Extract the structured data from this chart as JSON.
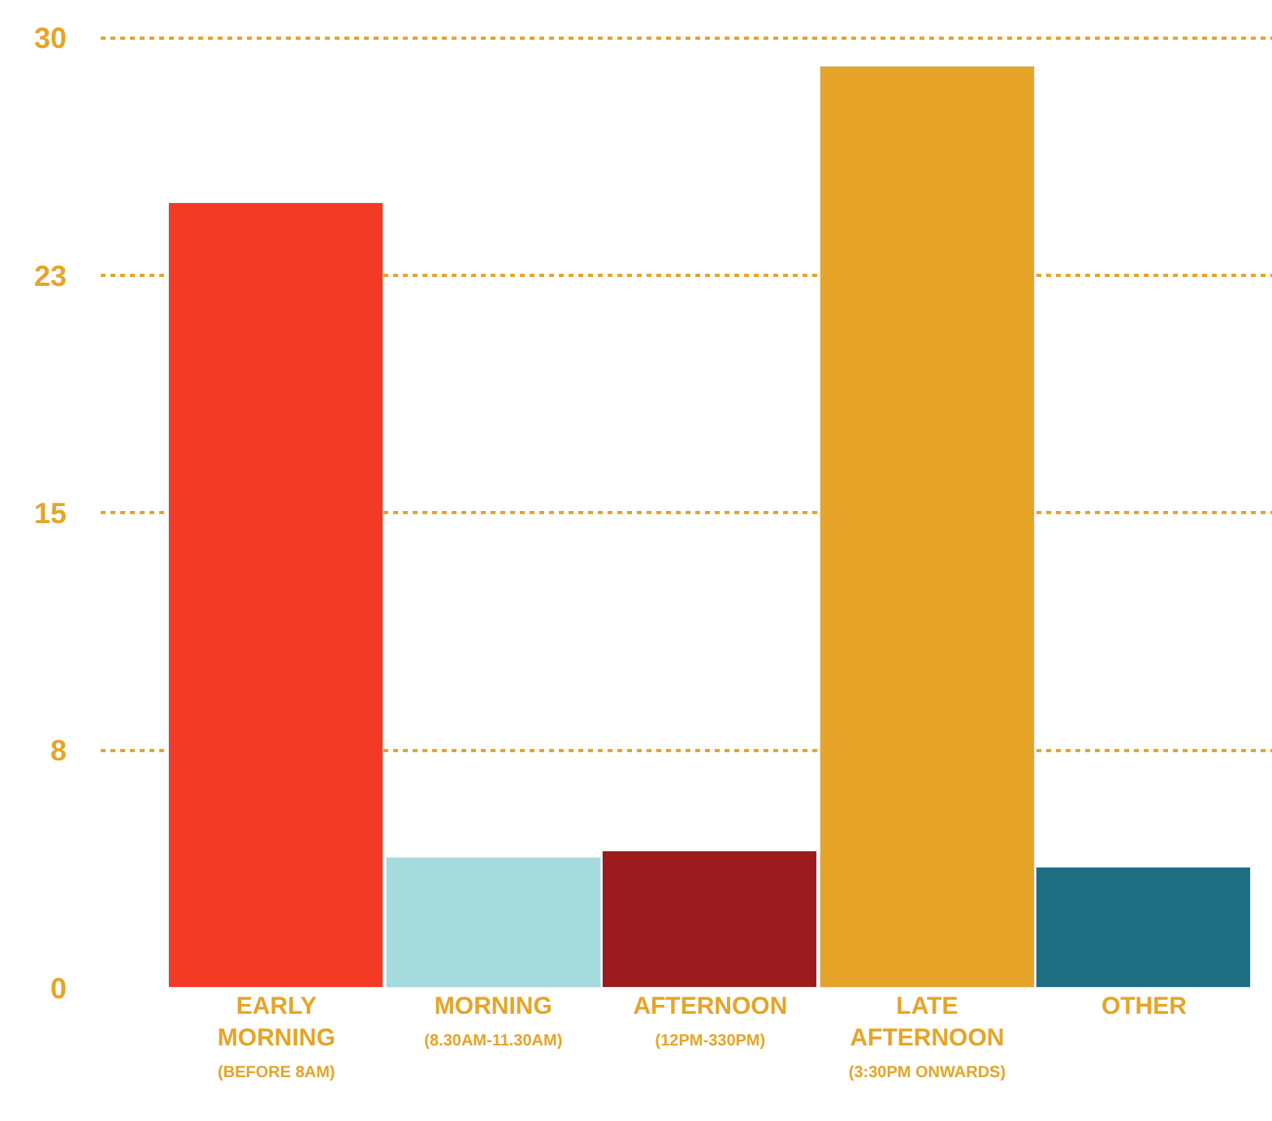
{
  "chart_data": {
    "type": "bar",
    "categories": [
      "EARLY\nMORNING\n(BEFORE 8AM)",
      "MORNING\n(8.30AM-11.30AM)",
      "AFTERNOON\n(12PM-330PM)",
      "LATE\nAFTERNOON\n(3:30PM ONWARDS)",
      "OTHER"
    ],
    "values": [
      24.8,
      4.1,
      4.3,
      29.1,
      3.8
    ],
    "colors": [
      "#f23a24",
      "#a6dbdd",
      "#9b1b1f",
      "#e6a428",
      "#1e6e82"
    ],
    "ylim": [
      0,
      31.2
    ],
    "yticks": [
      0,
      {
        "value": 7.5,
        "label": "8"
      },
      15,
      {
        "value": 22.5,
        "label": "23"
      },
      30
    ],
    "grid": "y"
  }
}
